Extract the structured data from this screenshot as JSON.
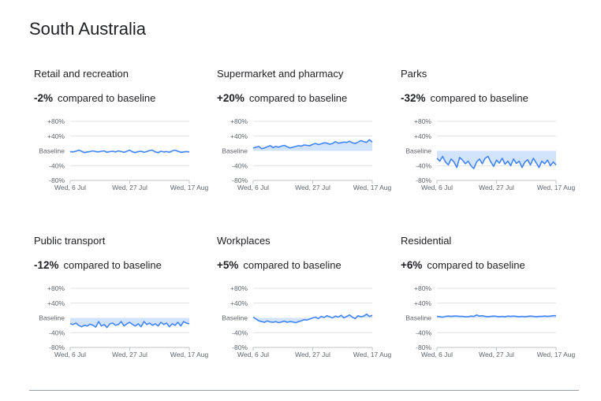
{
  "page": {
    "title": "South Australia"
  },
  "colors": {
    "line": "#4285f4",
    "band": "#d2e3fc",
    "grid": "#e0e0e0",
    "axis_text": "#5f6368"
  },
  "axis": {
    "y_ticks": [
      "+80%",
      "+40%",
      "Baseline",
      "-40%",
      "-80%"
    ],
    "y_values": [
      80,
      40,
      0,
      -40,
      -80
    ],
    "x_ticks": [
      "Wed, 6 Jul",
      "Wed, 27 Jul",
      "Wed, 17 Aug"
    ],
    "x_tick_days": [
      0,
      21,
      42
    ]
  },
  "compared_label": "compared to baseline",
  "chart_data": [
    {
      "type": "line",
      "title": "Retail and recreation",
      "change": "-2%",
      "x_range": [
        "6 Jul",
        "17 Aug"
      ],
      "ylim": [
        -80,
        80
      ],
      "values": [
        -2,
        -3,
        -1,
        2,
        -1,
        -5,
        -3,
        -2,
        0,
        -2,
        -3,
        -1,
        0,
        -4,
        -2,
        -1,
        -3,
        0,
        -2,
        -4,
        -1,
        2,
        -3,
        -5,
        -2,
        -1,
        -4,
        -2,
        1,
        2,
        -3,
        -5,
        -1,
        -3,
        -2,
        -4,
        0,
        2,
        -1,
        -4,
        -3,
        -2,
        -3
      ]
    },
    {
      "type": "line",
      "title": "Supermarket and pharmacy",
      "change": "+20%",
      "x_range": [
        "6 Jul",
        "17 Aug"
      ],
      "ylim": [
        -80,
        80
      ],
      "values": [
        8,
        10,
        12,
        6,
        8,
        11,
        14,
        9,
        12,
        10,
        13,
        15,
        11,
        8,
        10,
        12,
        14,
        13,
        16,
        15,
        14,
        18,
        20,
        17,
        19,
        22,
        21,
        18,
        20,
        25,
        21,
        22,
        24,
        23,
        26,
        22,
        20,
        24,
        28,
        25,
        23,
        30,
        24
      ]
    },
    {
      "type": "line",
      "title": "Parks",
      "change": "-32%",
      "x_range": [
        "6 Jul",
        "17 Aug"
      ],
      "ylim": [
        -80,
        80
      ],
      "values": [
        -20,
        -28,
        -15,
        -30,
        -38,
        -22,
        -30,
        -45,
        -18,
        -25,
        -35,
        -28,
        -40,
        -48,
        -30,
        -22,
        -35,
        -20,
        -15,
        -30,
        -42,
        -25,
        -33,
        -20,
        -36,
        -28,
        -40,
        -22,
        -34,
        -28,
        -45,
        -30,
        -24,
        -38,
        -20,
        -32,
        -45,
        -28,
        -35,
        -25,
        -40,
        -30,
        -38
      ]
    },
    {
      "type": "line",
      "title": "Public transport",
      "change": "-12%",
      "x_range": [
        "6 Jul",
        "17 Aug"
      ],
      "ylim": [
        -80,
        80
      ],
      "values": [
        -16,
        -18,
        -14,
        -20,
        -24,
        -20,
        -22,
        -17,
        -20,
        -25,
        -10,
        -22,
        -18,
        -26,
        -16,
        -14,
        -20,
        -18,
        -10,
        -22,
        -16,
        -12,
        -18,
        -22,
        -16,
        -24,
        -10,
        -18,
        -14,
        -20,
        -16,
        -22,
        -12,
        -18,
        -14,
        -24,
        -16,
        -20,
        -12,
        -22,
        -10,
        -14,
        -16
      ]
    },
    {
      "type": "line",
      "title": "Workplaces",
      "change": "+5%",
      "x_range": [
        "6 Jul",
        "17 Aug"
      ],
      "ylim": [
        -80,
        80
      ],
      "values": [
        2,
        -3,
        -8,
        -10,
        -12,
        -8,
        -11,
        -12,
        -10,
        -13,
        -11,
        -9,
        -12,
        -10,
        -11,
        -13,
        -10,
        -8,
        -5,
        -6,
        -3,
        0,
        2,
        -2,
        4,
        1,
        6,
        3,
        0,
        5,
        2,
        7,
        0,
        4,
        8,
        2,
        -2,
        6,
        3,
        5,
        10,
        4,
        7
      ]
    },
    {
      "type": "line",
      "title": "Residential",
      "change": "+6%",
      "x_range": [
        "6 Jul",
        "17 Aug"
      ],
      "ylim": [
        -80,
        80
      ],
      "values": [
        4,
        3,
        2,
        4,
        5,
        4,
        5,
        5,
        4,
        4,
        3,
        3,
        5,
        4,
        8,
        5,
        6,
        4,
        3,
        4,
        5,
        4,
        3,
        4,
        3,
        5,
        4,
        5,
        4,
        3,
        4,
        3,
        4,
        5,
        4,
        3,
        4,
        4,
        5,
        4,
        5,
        6,
        6
      ]
    }
  ]
}
